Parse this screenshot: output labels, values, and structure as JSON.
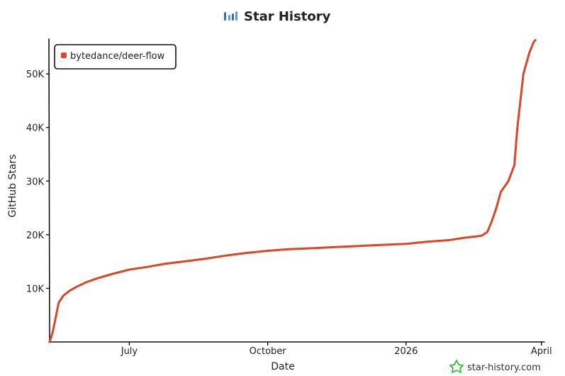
{
  "header": {
    "title": "Star History"
  },
  "watermark": {
    "text": "star-history.com"
  },
  "chart_data": {
    "type": "line",
    "title": "Star History",
    "xlabel": "Date",
    "ylabel": "GitHub Stars",
    "x_ticks": [
      "July",
      "October",
      "2026",
      "April"
    ],
    "x_tick_dates": [
      "2025-07-01",
      "2025-10-01",
      "2026-01-01",
      "2026-04-01"
    ],
    "y_ticks": [
      {
        "value": 10000,
        "label": "10K"
      },
      {
        "value": 20000,
        "label": "20K"
      },
      {
        "value": 30000,
        "label": "30K"
      },
      {
        "value": 40000,
        "label": "40K"
      },
      {
        "value": 50000,
        "label": "50K"
      }
    ],
    "xlim": [
      "2025-05-09",
      "2026-04-03"
    ],
    "ylim": [
      0,
      56500
    ],
    "grid": false,
    "legend_position": "top-left",
    "series": [
      {
        "name": "bytedance/deer-flow",
        "color": "#dd4528",
        "points": [
          [
            "2025-05-09",
            0
          ],
          [
            "2025-05-11",
            1800
          ],
          [
            "2025-05-13",
            4500
          ],
          [
            "2025-05-15",
            7300
          ],
          [
            "2025-05-18",
            8600
          ],
          [
            "2025-05-22",
            9500
          ],
          [
            "2025-05-27",
            10300
          ],
          [
            "2025-06-02",
            11100
          ],
          [
            "2025-06-10",
            11900
          ],
          [
            "2025-06-20",
            12700
          ],
          [
            "2025-07-01",
            13500
          ],
          [
            "2025-07-13",
            14000
          ],
          [
            "2025-07-25",
            14600
          ],
          [
            "2025-08-06",
            15000
          ],
          [
            "2025-08-20",
            15500
          ],
          [
            "2025-09-03",
            16100
          ],
          [
            "2025-09-17",
            16600
          ],
          [
            "2025-10-01",
            17000
          ],
          [
            "2025-10-15",
            17300
          ],
          [
            "2025-11-01",
            17500
          ],
          [
            "2025-11-15",
            17700
          ],
          [
            "2025-12-01",
            17900
          ],
          [
            "2025-12-15",
            18100
          ],
          [
            "2026-01-01",
            18300
          ],
          [
            "2026-01-15",
            18700
          ],
          [
            "2026-01-30",
            19000
          ],
          [
            "2026-02-08",
            19400
          ],
          [
            "2026-02-20",
            19800
          ],
          [
            "2026-02-24",
            20500
          ],
          [
            "2026-02-27",
            22500
          ],
          [
            "2026-03-02",
            25000
          ],
          [
            "2026-03-05",
            28000
          ],
          [
            "2026-03-10",
            30000
          ],
          [
            "2026-03-14",
            33000
          ],
          [
            "2026-03-16",
            40000
          ],
          [
            "2026-03-18",
            45000
          ],
          [
            "2026-03-20",
            50000
          ],
          [
            "2026-03-24",
            54000
          ],
          [
            "2026-03-27",
            56000
          ],
          [
            "2026-03-28",
            56300
          ]
        ]
      }
    ]
  }
}
